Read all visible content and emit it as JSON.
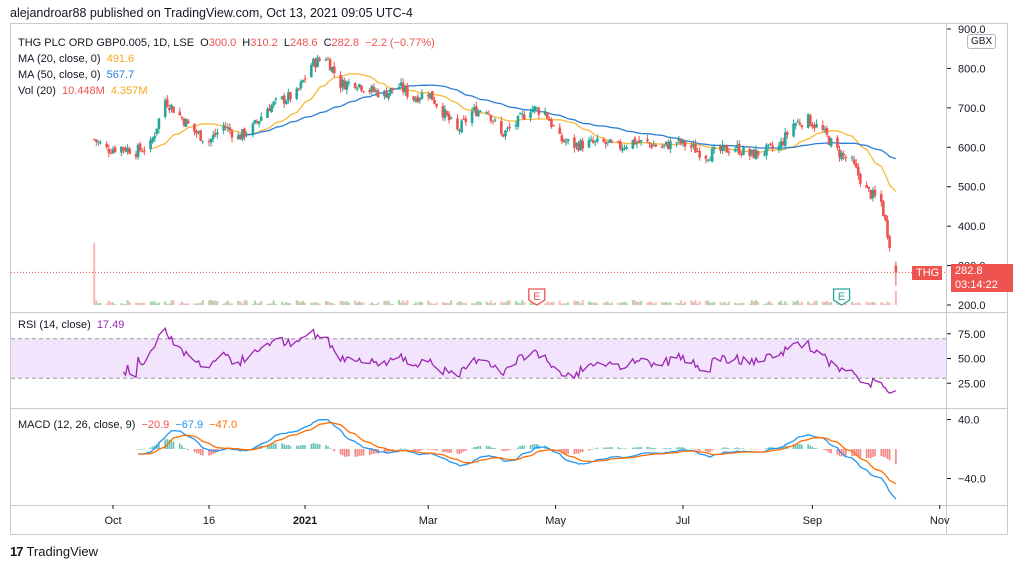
{
  "header": {
    "publish_line": "alejandroar88 published on TradingView.com, Oct 13, 2021 09:05 UTC-4"
  },
  "legend": {
    "symbol": "THG PLC ORD GBP0.005, 1D, LSE",
    "o_label": "O",
    "o_val": "300.0",
    "h_label": "H",
    "h_val": "310.2",
    "l_label": "L",
    "l_val": "248.6",
    "c_label": "C",
    "c_val": "282.8",
    "change": "−2.2 (−0.77%)",
    "ma20_label": "MA (20, close, 0)",
    "ma20_val": "491.6",
    "ma50_label": "MA (50, close, 0)",
    "ma50_val": "567.7",
    "vol_label": "Vol (20)",
    "vol_val1": "10.448M",
    "vol_val2": "4.357M",
    "rsi_label": "RSI (14, close)",
    "rsi_val": "17.49",
    "macd_label": "MACD (12, 26, close, 9)",
    "macd_v1": "−20.9",
    "macd_v2": "−67.9",
    "macd_v3": "−47.0"
  },
  "currency_badge": "GBX",
  "price_tag": {
    "symbol": "THG",
    "price": "282.8",
    "countdown": "03:14:22"
  },
  "earnings_markers": [
    "E",
    "E"
  ],
  "footer": {
    "brand": "TradingView"
  },
  "colors": {
    "up": "#26a69a",
    "down": "#ef5350",
    "ma20": "#f6b93b",
    "ma50": "#2a7fd4",
    "rsi": "#9c27b0",
    "macd": "#2196f3",
    "signal": "#ff6d00"
  },
  "chart_data": [
    {
      "type": "candlestick",
      "title": "THG PLC ORD GBP0.005, 1D, LSE",
      "x_ticks": [
        "Oct",
        "16",
        "2021",
        "Mar",
        "May",
        "Jul",
        "Sep",
        "Nov"
      ],
      "y_ticks": [
        "200.0",
        "300.0",
        "400.0",
        "500.0",
        "600.0",
        "700.0",
        "800.0",
        "900.0"
      ],
      "ylim": [
        200,
        900
      ],
      "price_path": [
        {
          "date": "2020-09-22",
          "close": 620
        },
        {
          "date": "2020-09-28",
          "close": 595
        },
        {
          "date": "2020-10-05",
          "close": 600
        },
        {
          "date": "2020-10-12",
          "close": 590
        },
        {
          "date": "2020-10-19",
          "close": 605
        },
        {
          "date": "2020-10-26",
          "close": 720
        },
        {
          "date": "2020-11-02",
          "close": 680
        },
        {
          "date": "2020-11-09",
          "close": 640
        },
        {
          "date": "2020-11-16",
          "close": 615
        },
        {
          "date": "2020-11-23",
          "close": 655
        },
        {
          "date": "2020-11-30",
          "close": 625
        },
        {
          "date": "2020-12-07",
          "close": 650
        },
        {
          "date": "2020-12-14",
          "close": 700
        },
        {
          "date": "2020-12-21",
          "close": 720
        },
        {
          "date": "2020-12-28",
          "close": 735
        },
        {
          "date": "2021-01-04",
          "close": 810
        },
        {
          "date": "2021-01-11",
          "close": 830
        },
        {
          "date": "2021-01-18",
          "close": 760
        },
        {
          "date": "2021-01-25",
          "close": 765
        },
        {
          "date": "2021-02-01",
          "close": 745
        },
        {
          "date": "2021-02-08",
          "close": 735
        },
        {
          "date": "2021-02-15",
          "close": 755
        },
        {
          "date": "2021-02-22",
          "close": 725
        },
        {
          "date": "2021-03-01",
          "close": 740
        },
        {
          "date": "2021-03-08",
          "close": 690
        },
        {
          "date": "2021-03-15",
          "close": 640
        },
        {
          "date": "2021-03-22",
          "close": 690
        },
        {
          "date": "2021-03-29",
          "close": 700
        },
        {
          "date": "2021-04-05",
          "close": 630
        },
        {
          "date": "2021-04-12",
          "close": 660
        },
        {
          "date": "2021-04-19",
          "close": 700
        },
        {
          "date": "2021-04-26",
          "close": 690
        },
        {
          "date": "2021-05-03",
          "close": 620
        },
        {
          "date": "2021-05-10",
          "close": 605
        },
        {
          "date": "2021-05-17",
          "close": 610
        },
        {
          "date": "2021-05-24",
          "close": 610
        },
        {
          "date": "2021-05-31",
          "close": 600
        },
        {
          "date": "2021-06-07",
          "close": 615
        },
        {
          "date": "2021-06-14",
          "close": 610
        },
        {
          "date": "2021-06-21",
          "close": 600
        },
        {
          "date": "2021-06-28",
          "close": 615
        },
        {
          "date": "2021-07-05",
          "close": 600
        },
        {
          "date": "2021-07-12",
          "close": 580
        },
        {
          "date": "2021-07-19",
          "close": 590
        },
        {
          "date": "2021-07-26",
          "close": 600
        },
        {
          "date": "2021-08-02",
          "close": 580
        },
        {
          "date": "2021-08-09",
          "close": 590
        },
        {
          "date": "2021-08-16",
          "close": 600
        },
        {
          "date": "2021-08-23",
          "close": 660
        },
        {
          "date": "2021-08-30",
          "close": 670
        },
        {
          "date": "2021-09-06",
          "close": 640
        },
        {
          "date": "2021-09-13",
          "close": 590
        },
        {
          "date": "2021-09-20",
          "close": 560
        },
        {
          "date": "2021-09-27",
          "close": 490
        },
        {
          "date": "2021-10-04",
          "close": 460
        },
        {
          "date": "2021-10-11",
          "close": 283
        }
      ],
      "ma20_last": 491.6,
      "ma50_last": 567.7,
      "last_price": 282.8
    },
    {
      "type": "line",
      "title": "RSI (14, close)",
      "y_ticks": [
        "25.00",
        "50.00",
        "75.00"
      ],
      "ylim": [
        10,
        90
      ],
      "bands": [
        30,
        70
      ],
      "last": 17.49
    },
    {
      "type": "line",
      "title": "MACD (12, 26, close, 9)",
      "y_ticks": [
        "40.0",
        "−40.0"
      ],
      "ylim": [
        -70,
        50
      ],
      "series": [
        {
          "name": "MACD",
          "last": -67.9
        },
        {
          "name": "Signal",
          "last": -47.0
        },
        {
          "name": "Histogram",
          "last": -20.9
        }
      ]
    }
  ]
}
